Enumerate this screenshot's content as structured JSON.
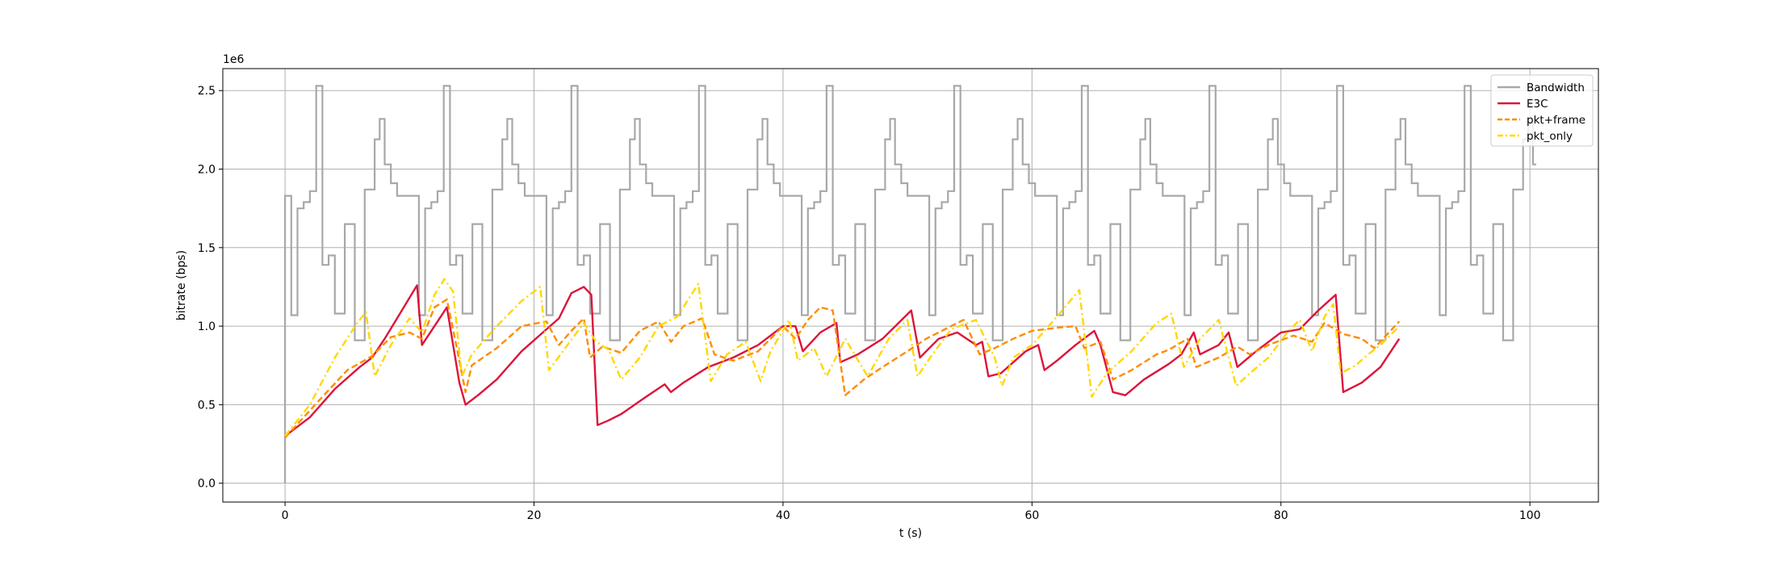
{
  "chart_data": {
    "type": "line",
    "xlabel": "t (s)",
    "ylabel": "bitrate (bps)",
    "y_offset_text": "1e6",
    "xlim": [
      -5,
      105.5
    ],
    "ylim": [
      -0.12,
      2.64
    ],
    "x_ticks": [
      0,
      20,
      40,
      60,
      80,
      100
    ],
    "y_ticks": [
      0.0,
      0.5,
      1.0,
      1.5,
      2.0,
      2.5
    ],
    "x_tick_labels": [
      "0",
      "20",
      "40",
      "60",
      "80",
      "100"
    ],
    "y_tick_labels": [
      "0.0",
      "0.5",
      "1.0",
      "1.5",
      "2.0",
      "2.5"
    ],
    "grid": true,
    "legend_position": "top-right",
    "bandwidth_cycle": {
      "start": 0,
      "period": 10.25,
      "repeat_until": 100.5,
      "initial": [
        [
          0,
          0
        ]
      ],
      "steps": [
        [
          0,
          1.83
        ],
        [
          0.5,
          1.07
        ],
        [
          1.0,
          1.75
        ],
        [
          1.5,
          1.79
        ],
        [
          2.0,
          1.86
        ],
        [
          2.5,
          2.53
        ],
        [
          3.0,
          1.39
        ],
        [
          3.5,
          1.45
        ],
        [
          4.0,
          1.08
        ],
        [
          4.8,
          1.65
        ],
        [
          5.6,
          0.91
        ],
        [
          6.4,
          1.87
        ],
        [
          7.2,
          2.19
        ],
        [
          7.6,
          2.32
        ],
        [
          8.0,
          2.03
        ],
        [
          8.5,
          1.91
        ],
        [
          9.0,
          1.83
        ]
      ]
    },
    "series": [
      {
        "name": "Bandwidth",
        "color": "#a8a8a8",
        "style": "solid"
      },
      {
        "name": "E3C",
        "color": "#dc143c",
        "style": "solid",
        "points": [
          [
            0,
            0.3
          ],
          [
            2,
            0.42
          ],
          [
            4,
            0.6
          ],
          [
            6,
            0.74
          ],
          [
            7,
            0.8
          ],
          [
            8,
            0.92
          ],
          [
            9,
            1.05
          ],
          [
            10.6,
            1.26
          ],
          [
            11,
            0.88
          ],
          [
            12,
            1.0
          ],
          [
            13,
            1.12
          ],
          [
            14,
            0.64
          ],
          [
            14.5,
            0.5
          ],
          [
            15.5,
            0.56
          ],
          [
            17,
            0.66
          ],
          [
            19,
            0.84
          ],
          [
            21,
            0.98
          ],
          [
            22,
            1.05
          ],
          [
            23,
            1.21
          ],
          [
            24,
            1.25
          ],
          [
            24.6,
            1.2
          ],
          [
            25.1,
            0.37
          ],
          [
            26,
            0.4
          ],
          [
            27,
            0.44
          ],
          [
            29,
            0.55
          ],
          [
            30.5,
            0.63
          ],
          [
            31,
            0.58
          ],
          [
            32,
            0.64
          ],
          [
            34,
            0.74
          ],
          [
            36,
            0.8
          ],
          [
            38,
            0.88
          ],
          [
            40,
            1.0
          ],
          [
            41,
            1.0
          ],
          [
            41.6,
            0.84
          ],
          [
            43,
            0.96
          ],
          [
            44.3,
            1.02
          ],
          [
            44.6,
            0.77
          ],
          [
            46,
            0.82
          ],
          [
            48,
            0.92
          ],
          [
            50.3,
            1.1
          ],
          [
            51,
            0.8
          ],
          [
            52.5,
            0.92
          ],
          [
            54,
            0.96
          ],
          [
            55.5,
            0.88
          ],
          [
            56,
            0.9
          ],
          [
            56.5,
            0.68
          ],
          [
            57.5,
            0.7
          ],
          [
            59.5,
            0.84
          ],
          [
            60.5,
            0.88
          ],
          [
            61,
            0.72
          ],
          [
            62,
            0.78
          ],
          [
            63.5,
            0.88
          ],
          [
            65,
            0.97
          ],
          [
            65.5,
            0.88
          ],
          [
            66.5,
            0.58
          ],
          [
            67.5,
            0.56
          ],
          [
            69,
            0.66
          ],
          [
            71,
            0.76
          ],
          [
            72,
            0.82
          ],
          [
            73,
            0.96
          ],
          [
            73.5,
            0.82
          ],
          [
            75,
            0.88
          ],
          [
            75.8,
            0.96
          ],
          [
            76.5,
            0.74
          ],
          [
            78,
            0.84
          ],
          [
            80,
            0.96
          ],
          [
            81.5,
            0.98
          ],
          [
            83,
            1.1
          ],
          [
            84.4,
            1.2
          ],
          [
            85,
            0.58
          ],
          [
            86.5,
            0.64
          ],
          [
            88,
            0.74
          ],
          [
            89.5,
            0.92
          ]
        ]
      },
      {
        "name": "pkt+frame",
        "color": "#ff8c00",
        "style": "dashed",
        "points": [
          [
            0,
            0.29
          ],
          [
            3,
            0.55
          ],
          [
            5,
            0.72
          ],
          [
            7,
            0.81
          ],
          [
            8.5,
            0.93
          ],
          [
            10,
            0.96
          ],
          [
            11,
            0.92
          ],
          [
            12,
            1.12
          ],
          [
            13,
            1.17
          ],
          [
            13.8,
            0.86
          ],
          [
            14.5,
            0.58
          ],
          [
            15,
            0.75
          ],
          [
            17,
            0.86
          ],
          [
            19,
            1.0
          ],
          [
            21,
            1.03
          ],
          [
            22,
            0.88
          ],
          [
            23,
            0.97
          ],
          [
            24,
            1.05
          ],
          [
            24.5,
            0.8
          ],
          [
            25.5,
            0.87
          ],
          [
            27,
            0.83
          ],
          [
            28.5,
            0.97
          ],
          [
            30,
            1.03
          ],
          [
            31,
            0.9
          ],
          [
            32,
            1.0
          ],
          [
            33.5,
            1.05
          ],
          [
            34.5,
            0.82
          ],
          [
            36,
            0.78
          ],
          [
            38,
            0.84
          ],
          [
            40,
            1.0
          ],
          [
            41,
            0.92
          ],
          [
            42,
            1.04
          ],
          [
            43,
            1.12
          ],
          [
            44,
            1.1
          ],
          [
            45,
            0.56
          ],
          [
            46.5,
            0.66
          ],
          [
            48,
            0.74
          ],
          [
            50,
            0.84
          ],
          [
            51.5,
            0.92
          ],
          [
            53,
            0.98
          ],
          [
            54.5,
            1.04
          ],
          [
            55.8,
            0.82
          ],
          [
            57,
            0.86
          ],
          [
            58.5,
            0.92
          ],
          [
            60,
            0.97
          ],
          [
            62,
            0.99
          ],
          [
            63.5,
            1.0
          ],
          [
            64.2,
            0.86
          ],
          [
            65.5,
            0.9
          ],
          [
            66.5,
            0.66
          ],
          [
            68,
            0.72
          ],
          [
            70,
            0.82
          ],
          [
            71,
            0.85
          ],
          [
            72.5,
            0.92
          ],
          [
            73.2,
            0.74
          ],
          [
            75,
            0.8
          ],
          [
            76.5,
            0.87
          ],
          [
            77.5,
            0.82
          ],
          [
            79,
            0.88
          ],
          [
            81,
            0.94
          ],
          [
            82.5,
            0.9
          ],
          [
            83.5,
            1.02
          ],
          [
            85,
            0.95
          ],
          [
            86.5,
            0.92
          ],
          [
            87.5,
            0.86
          ],
          [
            89.5,
            1.03
          ]
        ]
      },
      {
        "name": "pkt_only",
        "color": "#ffd700",
        "style": "dashdot",
        "points": [
          [
            0,
            0.3
          ],
          [
            2,
            0.5
          ],
          [
            4,
            0.8
          ],
          [
            5.8,
            1.02
          ],
          [
            6.5,
            1.09
          ],
          [
            7.2,
            0.68
          ],
          [
            8.5,
            0.88
          ],
          [
            10,
            1.05
          ],
          [
            11,
            0.96
          ],
          [
            12,
            1.2
          ],
          [
            12.8,
            1.3
          ],
          [
            13.5,
            1.22
          ],
          [
            14.2,
            0.68
          ],
          [
            15,
            0.82
          ],
          [
            17,
            1.0
          ],
          [
            19,
            1.16
          ],
          [
            20.5,
            1.25
          ],
          [
            21.2,
            0.72
          ],
          [
            22.5,
            0.86
          ],
          [
            24,
            1.02
          ],
          [
            25,
            0.9
          ],
          [
            26,
            0.85
          ],
          [
            27,
            0.66
          ],
          [
            28.5,
            0.8
          ],
          [
            30,
            1.0
          ],
          [
            31.5,
            1.06
          ],
          [
            33.2,
            1.27
          ],
          [
            34.2,
            0.65
          ],
          [
            35.5,
            0.82
          ],
          [
            37,
            0.9
          ],
          [
            38.2,
            0.65
          ],
          [
            39,
            0.84
          ],
          [
            40.5,
            1.04
          ],
          [
            41.2,
            0.78
          ],
          [
            42.5,
            0.86
          ],
          [
            43.5,
            0.68
          ],
          [
            45,
            0.92
          ],
          [
            46.8,
            0.68
          ],
          [
            48.5,
            0.92
          ],
          [
            50,
            1.04
          ],
          [
            50.8,
            0.68
          ],
          [
            52,
            0.82
          ],
          [
            53.5,
            0.98
          ],
          [
            55.5,
            1.04
          ],
          [
            57,
            0.8
          ],
          [
            57.6,
            0.62
          ],
          [
            58.5,
            0.8
          ],
          [
            60,
            0.88
          ],
          [
            62,
            1.06
          ],
          [
            63.8,
            1.23
          ],
          [
            64.8,
            0.55
          ],
          [
            66,
            0.7
          ],
          [
            68,
            0.84
          ],
          [
            70,
            1.02
          ],
          [
            71.2,
            1.08
          ],
          [
            72.2,
            0.74
          ],
          [
            73.5,
            0.92
          ],
          [
            75,
            1.04
          ],
          [
            76.4,
            0.62
          ],
          [
            77.5,
            0.7
          ],
          [
            79,
            0.8
          ],
          [
            80.5,
            0.96
          ],
          [
            81.5,
            1.04
          ],
          [
            82.5,
            0.84
          ],
          [
            83.5,
            1.06
          ],
          [
            84.2,
            1.14
          ],
          [
            84.8,
            0.7
          ],
          [
            86,
            0.75
          ],
          [
            87,
            0.82
          ],
          [
            88,
            0.88
          ],
          [
            89.5,
            1.0
          ]
        ]
      }
    ]
  }
}
